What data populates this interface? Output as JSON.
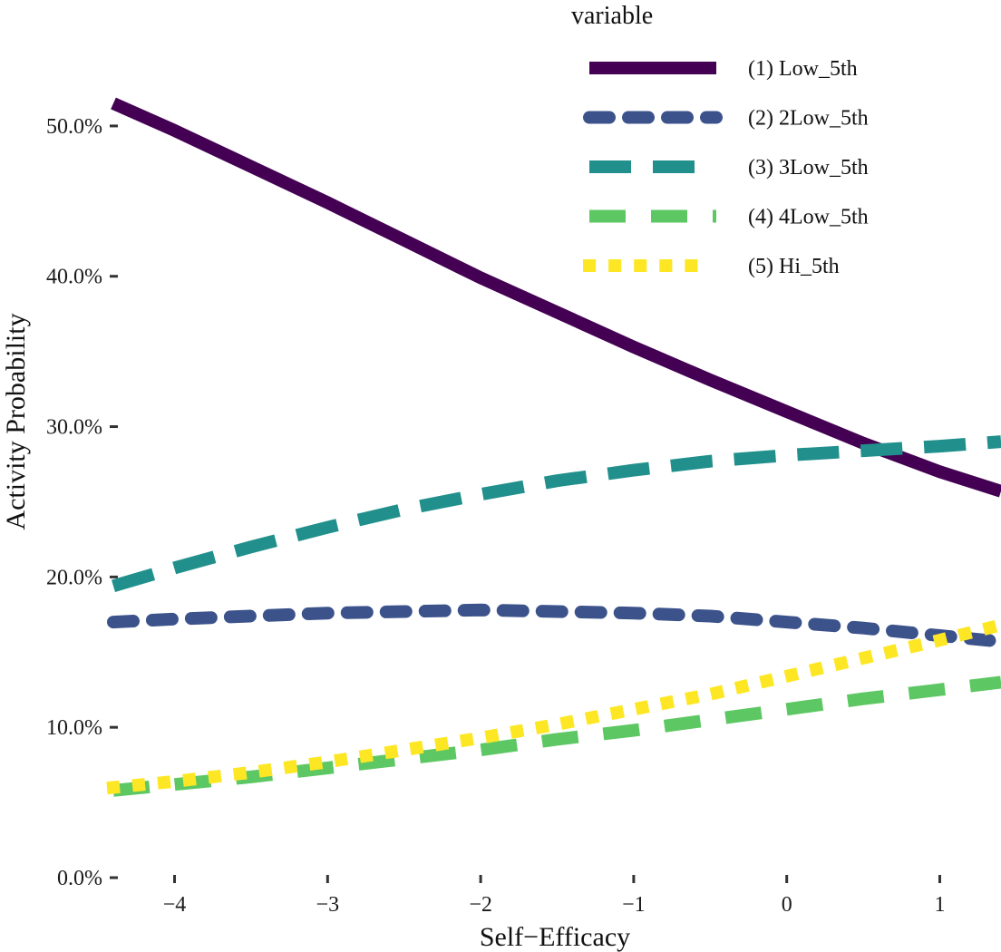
{
  "chart_data": {
    "type": "line",
    "title": "",
    "xlabel": "Self−Efficacy",
    "ylabel": "Activity Probability",
    "xlim": [
      -4.4,
      1.4
    ],
    "ylim": [
      0,
      0.55
    ],
    "x_ticks": [
      {
        "value": -4,
        "label": "−4"
      },
      {
        "value": -3,
        "label": "−3"
      },
      {
        "value": -2,
        "label": "−2"
      },
      {
        "value": -1,
        "label": "−1"
      },
      {
        "value": 0,
        "label": "0"
      },
      {
        "value": 1,
        "label": "1"
      }
    ],
    "y_ticks": [
      {
        "value": 0.0,
        "label": "0.0%"
      },
      {
        "value": 0.1,
        "label": "10.0%"
      },
      {
        "value": 0.2,
        "label": "20.0%"
      },
      {
        "value": 0.3,
        "label": "30.0%"
      },
      {
        "value": 0.4,
        "label": "40.0%"
      },
      {
        "value": 0.5,
        "label": "50.0%"
      }
    ],
    "grid": false,
    "legend": {
      "title": "variable",
      "position": "top-right"
    },
    "x": [
      -4.4,
      -4,
      -3.5,
      -3,
      -2.5,
      -2,
      -1.5,
      -1,
      -0.5,
      0,
      0.5,
      1,
      1.4
    ],
    "series": [
      {
        "name": "(1) Low_5th",
        "color": "#440154",
        "dash": "solid",
        "values": [
          0.515,
          0.497,
          0.473,
          0.449,
          0.424,
          0.399,
          0.376,
          0.353,
          0.331,
          0.31,
          0.289,
          0.27,
          0.257
        ]
      },
      {
        "name": "(2) 2Low_5th",
        "color": "#3B528B",
        "dash": "dash",
        "values": [
          0.17,
          0.172,
          0.174,
          0.176,
          0.177,
          0.178,
          0.177,
          0.176,
          0.174,
          0.17,
          0.166,
          0.161,
          0.157
        ]
      },
      {
        "name": "(3) 3Low_5th",
        "color": "#21908C",
        "dash": "longdash",
        "values": [
          0.194,
          0.206,
          0.22,
          0.233,
          0.245,
          0.255,
          0.264,
          0.271,
          0.277,
          0.281,
          0.284,
          0.287,
          0.29
        ]
      },
      {
        "name": "(4) 4Low_5th",
        "color": "#5DC863",
        "dash": "twodash",
        "values": [
          0.058,
          0.062,
          0.067,
          0.073,
          0.079,
          0.085,
          0.092,
          0.098,
          0.105,
          0.112,
          0.119,
          0.125,
          0.13
        ]
      },
      {
        "name": "(5) Hi_5th",
        "color": "#FDE725",
        "dash": "dotted",
        "values": [
          0.06,
          0.064,
          0.07,
          0.077,
          0.085,
          0.093,
          0.102,
          0.112,
          0.122,
          0.134,
          0.146,
          0.158,
          0.168
        ]
      }
    ]
  }
}
